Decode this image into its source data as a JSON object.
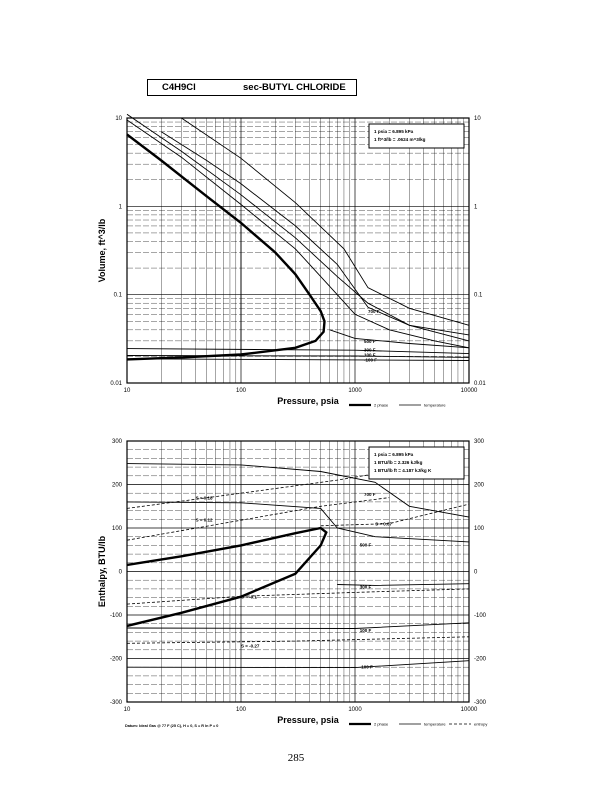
{
  "page_title": {
    "formula": "C4H9Cl",
    "name": "sec-BUTYL CHLORIDE"
  },
  "page_number": "285",
  "datum_note": "Datum: Ideal Gas @ 77 F (25 C), H = 0, S = R ln P = 0",
  "chart_data": [
    {
      "type": "line",
      "title": "",
      "xlabel": "Pressure,  psia",
      "ylabel": "Volume, ft^3/lb",
      "xscale": "log",
      "yscale": "log",
      "xlim": [
        10,
        10000
      ],
      "ylim": [
        0.01,
        10
      ],
      "x_ticks": [
        "10",
        "100",
        "1000",
        "10000"
      ],
      "y_ticks": [
        "10",
        "1",
        "0.1",
        "0.01"
      ],
      "y_ticks_right": [
        "10",
        "1",
        "0.1",
        "0.01"
      ],
      "grid": true,
      "conversions": [
        "1 psia  =  6.895 kPa",
        "1 ft^3/lb  =  .0624 m^3/kg"
      ],
      "legend": [
        {
          "name": "2 phase",
          "style": "thick"
        },
        {
          "name": "temperature",
          "style": "thin"
        }
      ],
      "series": [
        {
          "name": "2 phase",
          "kind": "dome",
          "points": [
            [
              10,
              6.5
            ],
            [
              20,
              3.3
            ],
            [
              50,
              1.3
            ],
            [
              100,
              0.65
            ],
            [
              200,
              0.3
            ],
            [
              300,
              0.17
            ],
            [
              400,
              0.1
            ],
            [
              500,
              0.065
            ],
            [
              540,
              0.05
            ],
            [
              530,
              0.038
            ],
            [
              450,
              0.03
            ],
            [
              300,
              0.025
            ],
            [
              100,
              0.021
            ],
            [
              30,
              0.0195
            ],
            [
              10,
              0.0185
            ]
          ]
        },
        {
          "name": "isotherm-a",
          "label": "",
          "points": [
            [
              10,
              9.5
            ],
            [
              30,
              3.6
            ],
            [
              100,
              1.05
            ],
            [
              300,
              0.33
            ],
            [
              700,
              0.1
            ],
            [
              1000,
              0.06
            ],
            [
              2000,
              0.04
            ],
            [
              5000,
              0.03
            ],
            [
              10000,
              0.025
            ]
          ]
        },
        {
          "name": "isotherm-b",
          "label": "",
          "points": [
            [
              10,
              11
            ],
            [
              30,
              4.2
            ],
            [
              100,
              1.35
            ],
            [
              300,
              0.44
            ],
            [
              700,
              0.16
            ],
            [
              1300,
              0.08
            ],
            [
              3000,
              0.045
            ],
            [
              10000,
              0.03
            ]
          ]
        },
        {
          "name": "isotherm-c",
          "label": "",
          "points": [
            [
              20,
              7
            ],
            [
              50,
              3.3
            ],
            [
              100,
              1.8
            ],
            [
              300,
              0.6
            ],
            [
              700,
              0.22
            ],
            [
              1300,
              0.072
            ],
            [
              3000,
              0.045
            ],
            [
              10000,
              0.035
            ]
          ]
        },
        {
          "name": "700 F",
          "label": "700 F",
          "label_at": [
            1300,
            0.065
          ],
          "points": [
            [
              30,
              10
            ],
            [
              100,
              3.5
            ],
            [
              300,
              1.1
            ],
            [
              800,
              0.33
            ],
            [
              1300,
              0.12
            ],
            [
              3000,
              0.07
            ],
            [
              10000,
              0.045
            ]
          ]
        },
        {
          "name": "500 F",
          "label": "500 F",
          "label_at": [
            1200,
            0.03
          ],
          "points": [
            [
              600,
              0.04
            ],
            [
              1000,
              0.032
            ],
            [
              3000,
              0.028
            ],
            [
              10000,
              0.025
            ]
          ]
        },
        {
          "name": "300 F",
          "label": "300 F",
          "label_at": [
            1200,
            0.024
          ],
          "points": [
            [
              10,
              0.0245
            ],
            [
              1000,
              0.0235
            ],
            [
              10000,
              0.0215
            ]
          ]
        },
        {
          "name": "100 F",
          "label": "100 F",
          "label_at": [
            1200,
            0.021
          ],
          "points": [
            [
              10,
              0.0205
            ],
            [
              1000,
              0.0202
            ],
            [
              10000,
              0.0195
            ]
          ]
        },
        {
          "name": "-100 F",
          "label": "-100 F",
          "label_at": [
            1200,
            0.0185
          ],
          "points": [
            [
              10,
              0.0188
            ],
            [
              10000,
              0.018
            ]
          ]
        }
      ]
    },
    {
      "type": "line",
      "title": "",
      "xlabel": "Pressure,  psia",
      "ylabel": "Enthalpy, BTU/lb",
      "xscale": "log",
      "yscale": "linear",
      "xlim": [
        10,
        10000
      ],
      "ylim": [
        -300,
        300
      ],
      "x_ticks": [
        "10",
        "100",
        "1000",
        "10000"
      ],
      "y_ticks": [
        "300",
        "200",
        "100",
        "0",
        "-100",
        "-200",
        "-300"
      ],
      "y_ticks_right": [
        "300",
        "200",
        "100",
        "0",
        "-100",
        "-200",
        "-300"
      ],
      "grid": true,
      "conversions": [
        "1 psia  =  6.895 kPa",
        "1 BTU/lb  =  2.326 kJ/kg",
        "1 BTU/lb ft  =  4.187 kJ/kg K"
      ],
      "legend": [
        {
          "name": "2 phase",
          "style": "thick"
        },
        {
          "name": "temperature",
          "style": "thin"
        },
        {
          "name": "entropy",
          "style": "dashed"
        }
      ],
      "series": [
        {
          "name": "2 phase",
          "kind": "dome",
          "points": [
            [
              10,
              -125
            ],
            [
              30,
              -95
            ],
            [
              100,
              -58
            ],
            [
              300,
              -5
            ],
            [
              500,
              60
            ],
            [
              560,
              90
            ],
            [
              500,
              100
            ],
            [
              300,
              88
            ],
            [
              100,
              60
            ],
            [
              30,
              35
            ],
            [
              10,
              15
            ]
          ]
        },
        {
          "name": "700 F",
          "label": "700 F",
          "label_at": [
            1200,
            178
          ],
          "points": [
            [
              10,
              248
            ],
            [
              100,
              245
            ],
            [
              500,
              230
            ],
            [
              1500,
              205
            ],
            [
              3000,
              150
            ],
            [
              10000,
              125
            ]
          ]
        },
        {
          "name": "500 F",
          "label": "500 F",
          "label_at": [
            1100,
            62
          ],
          "points": [
            [
              10,
              160
            ],
            [
              100,
              158
            ],
            [
              500,
              145
            ],
            [
              700,
              100
            ],
            [
              1500,
              80
            ],
            [
              10000,
              68
            ]
          ]
        },
        {
          "name": "300 F",
          "label": "300 F",
          "label_at": [
            1100,
            -35
          ],
          "points": [
            [
              700,
              -30
            ],
            [
              1500,
              -32
            ],
            [
              10000,
              -28
            ]
          ]
        },
        {
          "name": "100 F",
          "label": "100 F",
          "label_at": [
            1100,
            -135
          ],
          "points": [
            [
              10,
              -130
            ],
            [
              1000,
              -131
            ],
            [
              10000,
              -118
            ]
          ]
        },
        {
          "name": "-100 F",
          "label": "-100 F",
          "label_at": [
            1100,
            -218
          ],
          "points": [
            [
              10,
              -220
            ],
            [
              1000,
              -221
            ],
            [
              10000,
              -205
            ]
          ]
        },
        {
          "name": "S = 0.18",
          "kind": "entropy",
          "label": "S = 0.18",
          "label_at": [
            40,
            170
          ],
          "points": [
            [
              10,
              145
            ],
            [
              100,
              180
            ],
            [
              700,
              210
            ],
            [
              2000,
              230
            ]
          ]
        },
        {
          "name": "S = 0.12",
          "kind": "entropy",
          "label": "S = 0.12",
          "label_at": [
            40,
            120
          ],
          "points": [
            [
              10,
              72
            ],
            [
              100,
              118
            ],
            [
              500,
              150
            ],
            [
              2000,
              170
            ]
          ]
        },
        {
          "name": "S = 0.07",
          "kind": "entropy",
          "label": "S = 0.07",
          "label_at": [
            1500,
            110
          ],
          "points": [
            [
              500,
              105
            ],
            [
              2000,
              110
            ],
            [
              10000,
              155
            ]
          ]
        },
        {
          "name": "S = -0.1",
          "kind": "entropy",
          "label": "S = -0.1",
          "label_at": [
            100,
            -58
          ],
          "points": [
            [
              10,
              -75
            ],
            [
              100,
              -57
            ],
            [
              1000,
              -48
            ],
            [
              10000,
              -40
            ]
          ]
        },
        {
          "name": "S = -0.27",
          "kind": "entropy",
          "label": "S = -0.27",
          "label_at": [
            100,
            -170
          ],
          "points": [
            [
              10,
              -165
            ],
            [
              300,
              -160
            ],
            [
              10000,
              -150
            ]
          ]
        }
      ]
    }
  ]
}
